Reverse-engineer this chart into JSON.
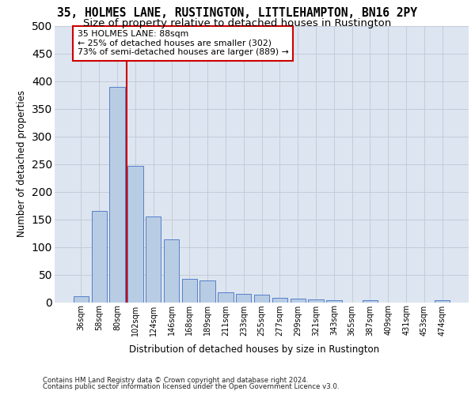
{
  "title_line1": "35, HOLMES LANE, RUSTINGTON, LITTLEHAMPTON, BN16 2PY",
  "title_line2": "Size of property relative to detached houses in Rustington",
  "xlabel": "Distribution of detached houses by size in Rustington",
  "ylabel": "Number of detached properties",
  "categories": [
    "36sqm",
    "58sqm",
    "80sqm",
    "102sqm",
    "124sqm",
    "146sqm",
    "168sqm",
    "189sqm",
    "211sqm",
    "233sqm",
    "255sqm",
    "277sqm",
    "299sqm",
    "321sqm",
    "343sqm",
    "365sqm",
    "387sqm",
    "409sqm",
    "431sqm",
    "453sqm",
    "474sqm"
  ],
  "values": [
    11,
    165,
    390,
    247,
    155,
    113,
    42,
    40,
    18,
    15,
    13,
    8,
    7,
    5,
    3,
    0,
    3,
    0,
    0,
    0,
    4
  ],
  "bar_color": "#b8cce4",
  "bar_edge_color": "#4472c4",
  "vline_x": 2.5,
  "vline_color": "#cc0000",
  "annotation_text": "35 HOLMES LANE: 88sqm\n← 25% of detached houses are smaller (302)\n73% of semi-detached houses are larger (889) →",
  "annotation_box_facecolor": "#ffffff",
  "annotation_box_edgecolor": "#cc0000",
  "ylim": [
    0,
    500
  ],
  "yticks": [
    0,
    50,
    100,
    150,
    200,
    250,
    300,
    350,
    400,
    450,
    500
  ],
  "grid_color": "#c0c8d8",
  "bg_color": "#dde5f0",
  "footer_line1": "Contains HM Land Registry data © Crown copyright and database right 2024.",
  "footer_line2": "Contains public sector information licensed under the Open Government Licence v3.0.",
  "title_fontsize": 10.5,
  "subtitle_fontsize": 9.5,
  "annotation_fontsize": 7.8,
  "tick_fontsize": 7,
  "xlabel_fontsize": 8.5,
  "ylabel_fontsize": 8.5,
  "footer_fontsize": 6.2
}
